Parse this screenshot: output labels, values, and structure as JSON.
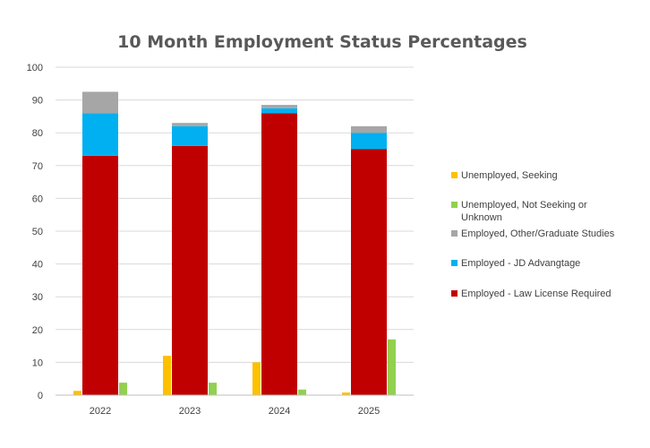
{
  "chart_data": {
    "type": "bar",
    "title": "10 Month Employment Status Percentages",
    "categories": [
      "2022",
      "2023",
      "2024",
      "2025"
    ],
    "ylim": [
      0,
      100
    ],
    "yticks": [
      0,
      10,
      20,
      30,
      40,
      50,
      60,
      70,
      80,
      90,
      100
    ],
    "grid": true,
    "legend_position": "right",
    "stacked_series": [
      {
        "name": "Employed - Law License Required",
        "color": "#c00000",
        "values": [
          73,
          76,
          86,
          75
        ]
      },
      {
        "name": "Employed - JD Advangtage",
        "color": "#00b0f0",
        "values": [
          13,
          6,
          1.5,
          5
        ]
      },
      {
        "name": "Employed, Other/Graduate Studies",
        "color": "#a6a6a6",
        "values": [
          6.5,
          1,
          1,
          2
        ]
      }
    ],
    "side_series": [
      {
        "name": "Unemployed, Seeking",
        "color": "#ffc000",
        "values": [
          1.3,
          12,
          10,
          0.8
        ]
      },
      {
        "name": "Unemployed, Not Seeking or Unknown",
        "color": "#92d050",
        "values": [
          3.8,
          3.8,
          1.7,
          17
        ]
      }
    ],
    "legend": [
      {
        "lines": [
          "Unemployed, Seeking"
        ],
        "color": "#ffc000"
      },
      {
        "lines": [
          "Unemployed, Not Seeking or",
          "Unknown"
        ],
        "color": "#92d050"
      },
      {
        "lines": [
          "Employed, Other/Graduate Studies"
        ],
        "color": "#a6a6a6"
      },
      {
        "lines": [
          "Employed - JD Advangtage"
        ],
        "color": "#00b0f0"
      },
      {
        "lines": [
          "Employed - Law License Required"
        ],
        "color": "#c00000"
      }
    ]
  }
}
